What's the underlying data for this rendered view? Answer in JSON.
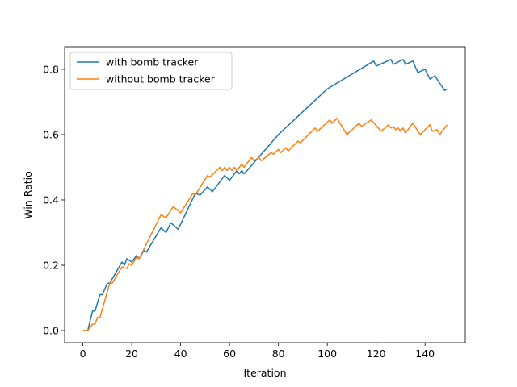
{
  "chart_data": {
    "type": "line",
    "xlabel": "Iteration",
    "ylabel": "Win Ratio",
    "xlim": [
      -7.45,
      156.45
    ],
    "ylim": [
      -0.037,
      0.869
    ],
    "xticks": [
      0,
      20,
      40,
      60,
      80,
      100,
      120,
      140
    ],
    "yticks": [
      {
        "value": 0,
        "label": "0.0"
      },
      {
        "value": 0.2,
        "label": "0.2"
      },
      {
        "value": 0.4,
        "label": "0.4"
      },
      {
        "value": 0.6,
        "label": "0.6"
      },
      {
        "value": 0.8,
        "label": "0.8"
      }
    ],
    "grid": false,
    "legend": "upper left",
    "series": [
      {
        "name": "with bomb tracker",
        "color": "#1f77b4",
        "x": [
          0,
          2,
          4,
          5,
          7,
          8,
          10,
          11,
          16,
          17,
          18,
          20,
          22,
          23,
          25,
          26,
          32,
          34,
          36,
          39,
          46,
          48,
          51,
          53,
          58,
          60,
          63,
          64,
          65,
          66,
          80,
          100,
          119,
          120,
          126,
          127,
          131,
          132,
          135,
          137,
          140,
          142,
          144,
          148,
          149
        ],
        "values": [
          0,
          0,
          0.06,
          0.06,
          0.11,
          0.11,
          0.145,
          0.145,
          0.21,
          0.2,
          0.22,
          0.21,
          0.23,
          0.22,
          0.245,
          0.24,
          0.315,
          0.3,
          0.33,
          0.31,
          0.42,
          0.415,
          0.44,
          0.425,
          0.475,
          0.46,
          0.49,
          0.48,
          0.49,
          0.48,
          0.6,
          0.74,
          0.825,
          0.81,
          0.83,
          0.815,
          0.83,
          0.815,
          0.825,
          0.79,
          0.8,
          0.77,
          0.78,
          0.735,
          0.74
        ]
      },
      {
        "name": "without bomb tracker",
        "color": "#ff7f0e",
        "x": [
          0,
          2,
          4,
          5,
          6,
          7,
          11,
          12,
          16,
          18,
          19,
          20,
          22,
          23,
          32,
          34,
          37,
          40,
          45,
          46,
          51,
          52,
          56,
          57,
          58,
          59,
          60,
          61,
          62,
          63,
          65,
          66,
          69,
          70,
          72,
          73,
          77,
          78,
          80,
          81,
          83,
          84,
          88,
          89,
          95,
          96,
          101,
          102,
          104,
          108,
          113,
          114,
          118,
          122,
          125,
          126,
          127,
          128,
          129,
          130,
          131,
          132,
          135,
          138,
          142,
          143,
          145,
          146,
          149
        ],
        "values": [
          0,
          0,
          0.02,
          0.02,
          0.04,
          0.04,
          0.145,
          0.145,
          0.195,
          0.19,
          0.205,
          0.2,
          0.225,
          0.22,
          0.355,
          0.345,
          0.38,
          0.36,
          0.42,
          0.415,
          0.475,
          0.47,
          0.5,
          0.49,
          0.5,
          0.49,
          0.5,
          0.49,
          0.5,
          0.49,
          0.51,
          0.5,
          0.53,
          0.52,
          0.53,
          0.52,
          0.545,
          0.54,
          0.555,
          0.545,
          0.56,
          0.55,
          0.58,
          0.575,
          0.62,
          0.61,
          0.645,
          0.635,
          0.65,
          0.6,
          0.635,
          0.625,
          0.645,
          0.61,
          0.63,
          0.62,
          0.625,
          0.615,
          0.62,
          0.61,
          0.62,
          0.605,
          0.635,
          0.6,
          0.63,
          0.61,
          0.615,
          0.6,
          0.63
        ]
      }
    ]
  }
}
